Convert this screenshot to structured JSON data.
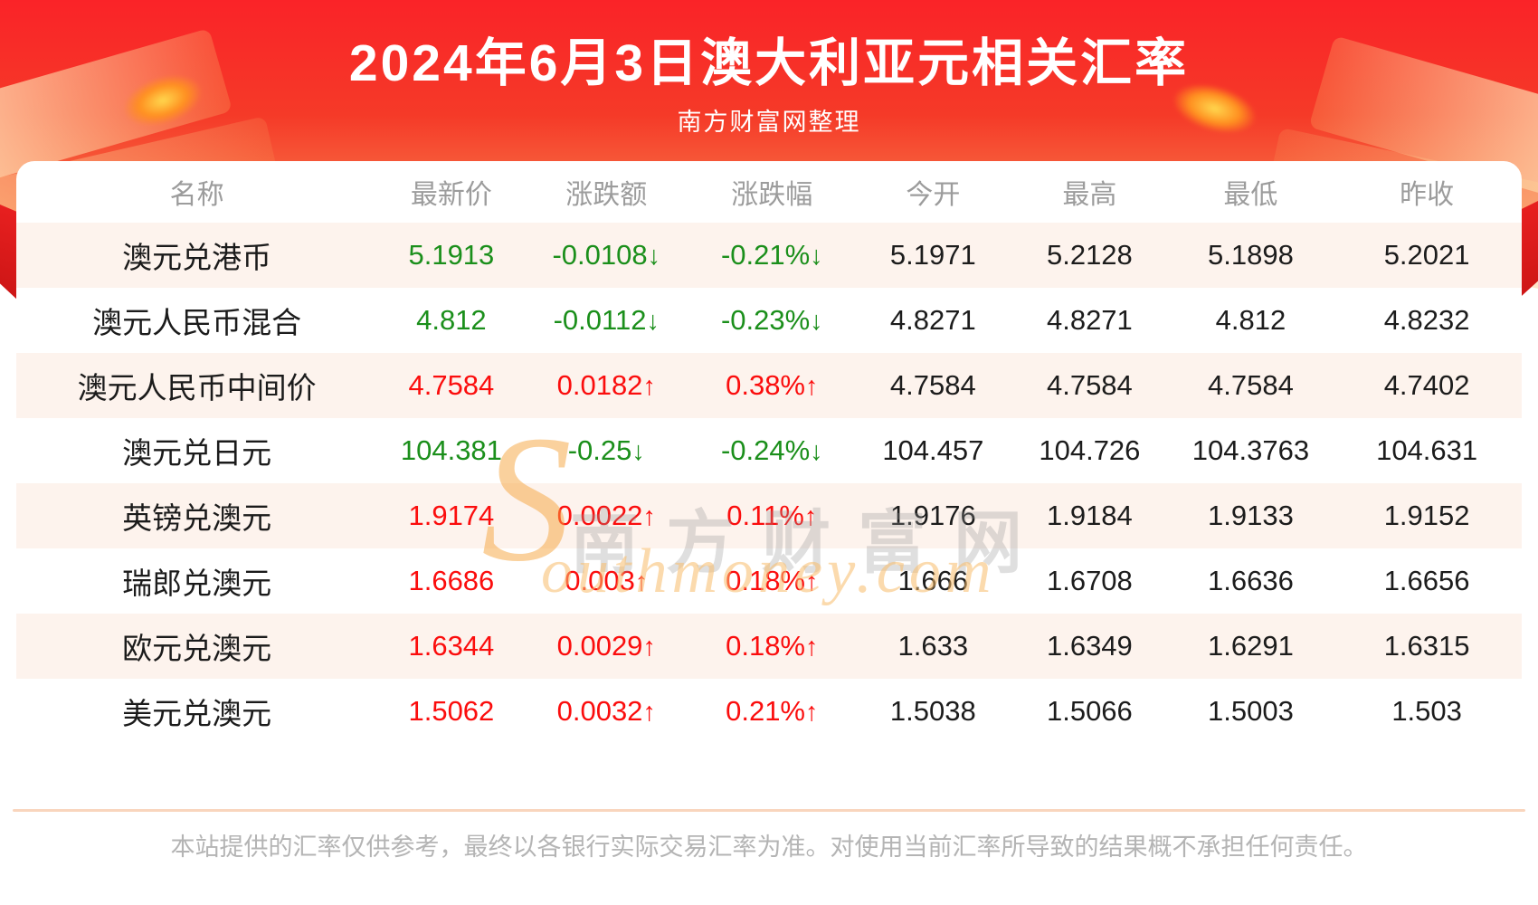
{
  "page": {
    "title": "2024年6月3日澳大利亚元相关汇率",
    "subtitle": "南方财富网整理",
    "footer_disclaimer": "本站提供的汇率仅供参考，最终以各银行实际交易汇率为准。对使用当前汇率所导致的结果概不承担任何责任。",
    "watermark": {
      "s": "S",
      "cn": "南方财富网",
      "en": "outhmoney.com"
    }
  },
  "colors": {
    "banner_red_top": "#fa2328",
    "banner_red_bottom": "#f87c4b",
    "up_red": "#fb0d0d",
    "down_green": "#1b8f1b",
    "row_alt_bg": "#fdf3ed",
    "header_text_gray": "#9c9c9c"
  },
  "chart_data": {
    "type": "table",
    "title": "2024年6月3日澳大利亚元相关汇率",
    "source_note": "南方财富网整理",
    "columns": [
      "名称",
      "最新价",
      "涨跌额",
      "涨跌幅",
      "今开",
      "最高",
      "最低",
      "昨收"
    ],
    "rows": [
      {
        "name": "澳元兑港币",
        "latest": "5.1913",
        "change": "-0.0108",
        "pct": "-0.21%",
        "arrow": "↓",
        "dir": "down",
        "open": "5.1971",
        "high": "5.2128",
        "low": "5.1898",
        "prev_close": "5.2021"
      },
      {
        "name": "澳元人民币混合",
        "latest": "4.812",
        "change": "-0.0112",
        "pct": "-0.23%",
        "arrow": "↓",
        "dir": "down",
        "open": "4.8271",
        "high": "4.8271",
        "low": "4.812",
        "prev_close": "4.8232"
      },
      {
        "name": "澳元人民币中间价",
        "latest": "4.7584",
        "change": "0.0182",
        "pct": "0.38%",
        "arrow": "↑",
        "dir": "up",
        "open": "4.7584",
        "high": "4.7584",
        "low": "4.7584",
        "prev_close": "4.7402"
      },
      {
        "name": "澳元兑日元",
        "latest": "104.381",
        "change": "-0.25",
        "pct": "-0.24%",
        "arrow": "↓",
        "dir": "down",
        "open": "104.457",
        "high": "104.726",
        "low": "104.3763",
        "prev_close": "104.631"
      },
      {
        "name": "英镑兑澳元",
        "latest": "1.9174",
        "change": "0.0022",
        "pct": "0.11%",
        "arrow": "↑",
        "dir": "up",
        "open": "1.9176",
        "high": "1.9184",
        "low": "1.9133",
        "prev_close": "1.9152"
      },
      {
        "name": "瑞郎兑澳元",
        "latest": "1.6686",
        "change": "0.003",
        "pct": "0.18%",
        "arrow": "↑",
        "dir": "up",
        "open": "1.666",
        "high": "1.6708",
        "low": "1.6636",
        "prev_close": "1.6656"
      },
      {
        "name": "欧元兑澳元",
        "latest": "1.6344",
        "change": "0.0029",
        "pct": "0.18%",
        "arrow": "↑",
        "dir": "up",
        "open": "1.633",
        "high": "1.6349",
        "low": "1.6291",
        "prev_close": "1.6315"
      },
      {
        "name": "美元兑澳元",
        "latest": "1.5062",
        "change": "0.0032",
        "pct": "0.21%",
        "arrow": "↑",
        "dir": "up",
        "open": "1.5038",
        "high": "1.5066",
        "low": "1.5003",
        "prev_close": "1.503"
      }
    ]
  }
}
